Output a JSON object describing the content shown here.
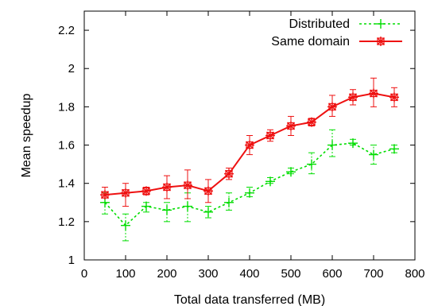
{
  "chart_data": {
    "type": "line",
    "title": "",
    "xlabel": "Total data transferred (MB)",
    "ylabel": "Mean speedup",
    "xlim": [
      0,
      800
    ],
    "ylim": [
      1,
      2.3
    ],
    "xticks": [
      0,
      100,
      200,
      300,
      400,
      500,
      600,
      700,
      800
    ],
    "yticks": [
      1,
      1.2,
      1.4,
      1.6,
      1.8,
      2,
      2.2
    ],
    "xtick_labels": [
      "0",
      "100",
      "200",
      "300",
      "400",
      "500",
      "600",
      "700",
      "800"
    ],
    "ytick_labels": [
      "1",
      "1.2",
      "1.4",
      "1.6",
      "1.8",
      "2",
      "2.2"
    ],
    "grid": false,
    "legend_position": "top-right",
    "x": [
      50,
      100,
      150,
      200,
      250,
      300,
      350,
      400,
      450,
      500,
      550,
      600,
      650,
      700,
      750
    ],
    "series": [
      {
        "name": "Distributed",
        "color": "#00dd00",
        "line_style": "dotted",
        "marker": "plus",
        "values": [
          1.3,
          1.18,
          1.28,
          1.26,
          1.28,
          1.25,
          1.3,
          1.35,
          1.41,
          1.46,
          1.5,
          1.6,
          1.61,
          1.55,
          1.58
        ],
        "err_low": [
          1.24,
          1.1,
          1.25,
          1.2,
          1.2,
          1.22,
          1.26,
          1.33,
          1.4,
          1.45,
          1.45,
          1.54,
          1.6,
          1.5,
          1.56
        ],
        "err_high": [
          1.35,
          1.24,
          1.3,
          1.3,
          1.35,
          1.28,
          1.35,
          1.38,
          1.43,
          1.48,
          1.56,
          1.68,
          1.63,
          1.6,
          1.6
        ]
      },
      {
        "name": "Same domain",
        "color": "#ee1111",
        "line_style": "solid",
        "marker": "asterisk",
        "values": [
          1.34,
          1.35,
          1.36,
          1.38,
          1.39,
          1.36,
          1.45,
          1.6,
          1.65,
          1.7,
          1.72,
          1.8,
          1.85,
          1.87,
          1.85
        ],
        "err_low": [
          1.3,
          1.28,
          1.34,
          1.32,
          1.32,
          1.3,
          1.42,
          1.55,
          1.62,
          1.65,
          1.7,
          1.75,
          1.81,
          1.8,
          1.8
        ],
        "err_high": [
          1.38,
          1.4,
          1.38,
          1.44,
          1.47,
          1.42,
          1.48,
          1.65,
          1.68,
          1.75,
          1.74,
          1.86,
          1.89,
          1.95,
          1.9
        ]
      }
    ]
  }
}
